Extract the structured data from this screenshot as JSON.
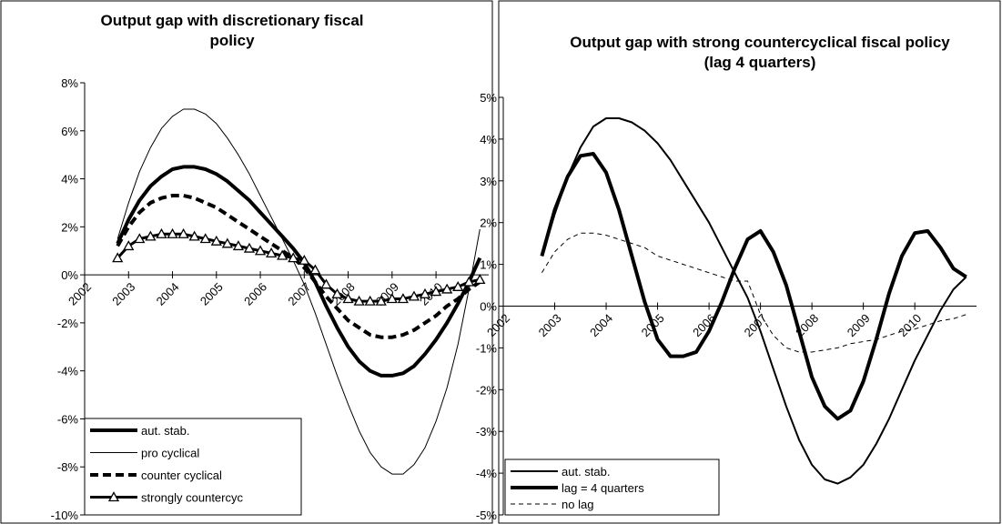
{
  "chart_data": [
    {
      "type": "line",
      "title": "Output gap with discretionary fiscal policy",
      "x": [
        2002.75,
        2003,
        2003.25,
        2003.5,
        2003.75,
        2004,
        2004.25,
        2004.5,
        2004.75,
        2005,
        2005.25,
        2005.5,
        2005.75,
        2006,
        2006.25,
        2006.5,
        2006.75,
        2007,
        2007.25,
        2007.5,
        2007.75,
        2008,
        2008.25,
        2008.5,
        2008.75,
        2009,
        2009.25,
        2009.5,
        2009.75,
        2010,
        2010.25,
        2010.5,
        2010.75,
        2011
      ],
      "xlim": [
        2002,
        2011.2
      ],
      "xticks": [
        2002,
        2003,
        2004,
        2005,
        2006,
        2007,
        2008,
        2009,
        2010
      ],
      "ylim": [
        -10,
        8
      ],
      "yticks": [
        {
          "value": -10,
          "label": "-10%"
        },
        {
          "value": -8,
          "label": "-8%"
        },
        {
          "value": -6,
          "label": "-6%"
        },
        {
          "value": -4,
          "label": "-4%"
        },
        {
          "value": -2,
          "label": "-2%"
        },
        {
          "value": 0,
          "label": "0%"
        },
        {
          "value": 2,
          "label": "2%"
        },
        {
          "value": 4,
          "label": "4%"
        },
        {
          "value": 6,
          "label": "6%"
        },
        {
          "value": 8,
          "label": "8%"
        }
      ],
      "legend": "lower left",
      "series": [
        {
          "name": "aut. stab.",
          "color": "#000000",
          "width": 4,
          "dash": "none",
          "marker": "none",
          "values": [
            1.3,
            2.3,
            3.1,
            3.7,
            4.1,
            4.4,
            4.5,
            4.5,
            4.4,
            4.2,
            3.9,
            3.5,
            3.1,
            2.6,
            2.1,
            1.6,
            1.1,
            0.5,
            -0.3,
            -1.3,
            -2.2,
            -3.0,
            -3.6,
            -4.0,
            -4.2,
            -4.2,
            -4.1,
            -3.8,
            -3.3,
            -2.7,
            -2.0,
            -1.2,
            -0.3,
            0.7
          ]
        },
        {
          "name": "pro cyclical",
          "color": "#000000",
          "width": 1,
          "dash": "none",
          "marker": "none",
          "values": [
            1.5,
            3.0,
            4.3,
            5.3,
            6.1,
            6.6,
            6.9,
            6.9,
            6.7,
            6.3,
            5.7,
            5.0,
            4.2,
            3.3,
            2.4,
            1.5,
            0.6,
            -0.4,
            -1.6,
            -2.9,
            -4.2,
            -5.4,
            -6.5,
            -7.4,
            -8.0,
            -8.3,
            -8.3,
            -7.9,
            -7.2,
            -6.1,
            -4.7,
            -2.9,
            -0.6,
            1.9
          ]
        },
        {
          "name": "counter cyclical",
          "color": "#000000",
          "width": 4,
          "dash": "9 5",
          "marker": "none",
          "values": [
            1.2,
            2.0,
            2.6,
            3.0,
            3.2,
            3.3,
            3.3,
            3.2,
            3.0,
            2.8,
            2.5,
            2.2,
            1.9,
            1.6,
            1.3,
            1.0,
            0.7,
            0.3,
            -0.3,
            -0.9,
            -1.4,
            -1.9,
            -2.2,
            -2.5,
            -2.6,
            -2.6,
            -2.5,
            -2.3,
            -2.0,
            -1.7,
            -1.3,
            -1.0,
            -0.6,
            -0.3
          ]
        },
        {
          "name": "strongly countercyc",
          "color": "#000000",
          "width": 3,
          "dash": "none",
          "marker": "triangle",
          "values": [
            0.7,
            1.2,
            1.5,
            1.6,
            1.7,
            1.7,
            1.7,
            1.6,
            1.5,
            1.4,
            1.3,
            1.2,
            1.1,
            1.0,
            0.9,
            0.8,
            0.7,
            0.6,
            0.2,
            -0.4,
            -0.8,
            -1.0,
            -1.1,
            -1.1,
            -1.1,
            -1.0,
            -1.0,
            -0.9,
            -0.8,
            -0.7,
            -0.6,
            -0.5,
            -0.3,
            -0.2
          ]
        }
      ]
    },
    {
      "type": "line",
      "title": "Output gap with strong countercyclical fiscal policy (lag 4 quarters)",
      "x": [
        2002.75,
        2003,
        2003.25,
        2003.5,
        2003.75,
        2004,
        2004.25,
        2004.5,
        2004.75,
        2005,
        2005.25,
        2005.5,
        2005.75,
        2006,
        2006.25,
        2006.5,
        2006.75,
        2007,
        2007.25,
        2007.5,
        2007.75,
        2008,
        2008.25,
        2008.5,
        2008.75,
        2009,
        2009.25,
        2009.5,
        2009.75,
        2010,
        2010.25,
        2010.5,
        2010.75,
        2011
      ],
      "xlim": [
        2002,
        2011.2
      ],
      "xticks": [
        2002,
        2003,
        2004,
        2005,
        2006,
        2007,
        2008,
        2009,
        2010
      ],
      "ylim": [
        -5,
        5
      ],
      "yticks": [
        {
          "value": -5,
          "label": "-5%"
        },
        {
          "value": -4,
          "label": "-4%"
        },
        {
          "value": -3,
          "label": "-3%"
        },
        {
          "value": -2,
          "label": "-2%"
        },
        {
          "value": -1,
          "label": "-1%"
        },
        {
          "value": 0,
          "label": "0%"
        },
        {
          "value": 1,
          "label": "1%"
        },
        {
          "value": 2,
          "label": "2%"
        },
        {
          "value": 3,
          "label": "3%"
        },
        {
          "value": 4,
          "label": "4%"
        },
        {
          "value": 5,
          "label": "5%"
        }
      ],
      "legend": "lower left",
      "series": [
        {
          "name": "aut. stab.",
          "color": "#000000",
          "width": 2,
          "dash": "none",
          "marker": "none",
          "values": [
            1.2,
            2.2,
            3.1,
            3.8,
            4.3,
            4.5,
            4.5,
            4.4,
            4.2,
            3.9,
            3.5,
            3.0,
            2.5,
            2.0,
            1.4,
            0.8,
            0.2,
            -0.6,
            -1.5,
            -2.4,
            -3.2,
            -3.8,
            -4.15,
            -4.25,
            -4.1,
            -3.8,
            -3.3,
            -2.7,
            -2.0,
            -1.3,
            -0.7,
            -0.1,
            0.4,
            0.7
          ]
        },
        {
          "name": "lag = 4 quarters",
          "color": "#000000",
          "width": 4,
          "dash": "none",
          "marker": "none",
          "values": [
            1.2,
            2.3,
            3.1,
            3.6,
            3.65,
            3.2,
            2.3,
            1.2,
            0.1,
            -0.8,
            -1.2,
            -1.2,
            -1.1,
            -0.6,
            0.1,
            0.9,
            1.6,
            1.8,
            1.3,
            0.5,
            -0.6,
            -1.7,
            -2.4,
            -2.7,
            -2.5,
            -1.8,
            -0.8,
            0.3,
            1.2,
            1.75,
            1.8,
            1.4,
            0.9,
            0.7
          ]
        },
        {
          "name": "no lag",
          "color": "#000000",
          "width": 1,
          "dash": "5 4",
          "marker": "none",
          "values": [
            0.8,
            1.3,
            1.6,
            1.75,
            1.75,
            1.7,
            1.6,
            1.5,
            1.4,
            1.2,
            1.1,
            1.0,
            0.9,
            0.8,
            0.7,
            0.6,
            0.6,
            -0.2,
            -0.7,
            -1.0,
            -1.1,
            -1.1,
            -1.05,
            -1.0,
            -0.9,
            -0.85,
            -0.8,
            -0.7,
            -0.6,
            -0.55,
            -0.45,
            -0.35,
            -0.3,
            -0.2
          ]
        }
      ]
    }
  ]
}
